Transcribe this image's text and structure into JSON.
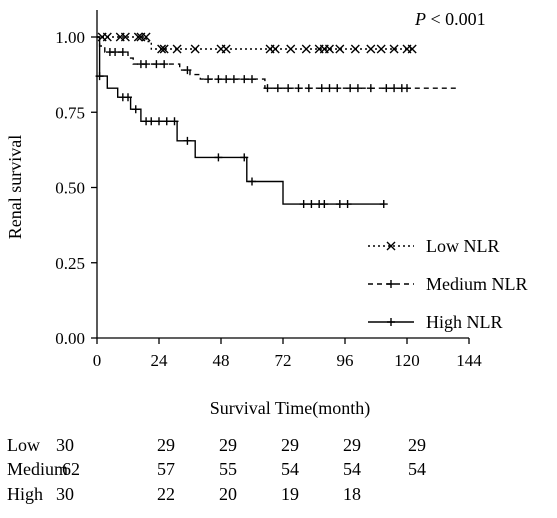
{
  "chart_data": {
    "type": "line",
    "subtype": "kaplan-meier",
    "title": "",
    "annotation": {
      "p_label": "P",
      "p_rest": " < 0.001"
    },
    "xlabel": "Survival Time(month)",
    "ylabel": "Renal survival",
    "xlim": [
      0,
      144
    ],
    "ylim": [
      0,
      1
    ],
    "xticks": [
      0,
      24,
      48,
      72,
      96,
      120,
      144
    ],
    "xtick_labels": [
      "0",
      "24",
      "48",
      "72",
      "96",
      "120",
      "144"
    ],
    "yticks": [
      0,
      0.25,
      0.5,
      0.75,
      1.0
    ],
    "ytick_labels": [
      "0.00",
      "0.25",
      "0.50",
      "0.75",
      "1.00"
    ],
    "legend_position": "right-middle",
    "series": [
      {
        "name": "Low NLR",
        "line_style": "dotted",
        "marker": "x",
        "steps": [
          [
            0,
            1.0
          ],
          [
            19,
            1.0
          ],
          [
            19,
            0.985
          ],
          [
            21,
            0.985
          ],
          [
            21,
            0.96
          ],
          [
            123,
            0.96
          ]
        ],
        "censored": [
          [
            2,
            1.0
          ],
          [
            4,
            1.0
          ],
          [
            9,
            1.0
          ],
          [
            11,
            1.0
          ],
          [
            16,
            1.0
          ],
          [
            17,
            1.0
          ],
          [
            19,
            1.0
          ],
          [
            25,
            0.96
          ],
          [
            26,
            0.96
          ],
          [
            31,
            0.96
          ],
          [
            38,
            0.96
          ],
          [
            48,
            0.96
          ],
          [
            50,
            0.96
          ],
          [
            67,
            0.96
          ],
          [
            69,
            0.96
          ],
          [
            75,
            0.96
          ],
          [
            81,
            0.96
          ],
          [
            86,
            0.96
          ],
          [
            88,
            0.96
          ],
          [
            90,
            0.96
          ],
          [
            94,
            0.96
          ],
          [
            100,
            0.96
          ],
          [
            106,
            0.96
          ],
          [
            110,
            0.96
          ],
          [
            115,
            0.96
          ],
          [
            120,
            0.96
          ],
          [
            122,
            0.96
          ]
        ]
      },
      {
        "name": "Medium NLR",
        "line_style": "dashed",
        "marker": "+",
        "steps": [
          [
            0,
            1.0
          ],
          [
            1,
            1.0
          ],
          [
            1,
            0.97
          ],
          [
            3,
            0.97
          ],
          [
            3,
            0.95
          ],
          [
            12,
            0.95
          ],
          [
            12,
            0.93
          ],
          [
            14,
            0.93
          ],
          [
            14,
            0.91
          ],
          [
            32,
            0.91
          ],
          [
            32,
            0.89
          ],
          [
            36,
            0.89
          ],
          [
            36,
            0.875
          ],
          [
            40,
            0.875
          ],
          [
            40,
            0.86
          ],
          [
            65,
            0.86
          ],
          [
            65,
            0.83
          ],
          [
            140,
            0.83
          ]
        ],
        "censored": [
          [
            5,
            0.95
          ],
          [
            7,
            0.95
          ],
          [
            10,
            0.95
          ],
          [
            17,
            0.91
          ],
          [
            19,
            0.91
          ],
          [
            23,
            0.91
          ],
          [
            26,
            0.91
          ],
          [
            35,
            0.89
          ],
          [
            43,
            0.86
          ],
          [
            47,
            0.86
          ],
          [
            50,
            0.86
          ],
          [
            53,
            0.86
          ],
          [
            57,
            0.86
          ],
          [
            60,
            0.86
          ],
          [
            66,
            0.83
          ],
          [
            70,
            0.83
          ],
          [
            74,
            0.83
          ],
          [
            78,
            0.83
          ],
          [
            82,
            0.83
          ],
          [
            87,
            0.83
          ],
          [
            90,
            0.83
          ],
          [
            93,
            0.83
          ],
          [
            98,
            0.83
          ],
          [
            101,
            0.83
          ],
          [
            106,
            0.83
          ],
          [
            112,
            0.83
          ],
          [
            115,
            0.83
          ],
          [
            118,
            0.83
          ],
          [
            120,
            0.83
          ]
        ]
      },
      {
        "name": "High NLR",
        "line_style": "solid",
        "marker": "+",
        "steps": [
          [
            0,
            1.0
          ],
          [
            1,
            1.0
          ],
          [
            1,
            0.87
          ],
          [
            4,
            0.87
          ],
          [
            4,
            0.83
          ],
          [
            8,
            0.83
          ],
          [
            8,
            0.8
          ],
          [
            13,
            0.8
          ],
          [
            13,
            0.76
          ],
          [
            17,
            0.76
          ],
          [
            17,
            0.72
          ],
          [
            31,
            0.72
          ],
          [
            31,
            0.655
          ],
          [
            38,
            0.655
          ],
          [
            38,
            0.6
          ],
          [
            58,
            0.6
          ],
          [
            58,
            0.52
          ],
          [
            72,
            0.52
          ],
          [
            72,
            0.445
          ],
          [
            111,
            0.445
          ]
        ],
        "censored": [
          [
            1,
            0.87
          ],
          [
            10,
            0.8
          ],
          [
            12,
            0.8
          ],
          [
            15,
            0.76
          ],
          [
            19,
            0.72
          ],
          [
            21,
            0.72
          ],
          [
            24,
            0.72
          ],
          [
            27,
            0.72
          ],
          [
            30,
            0.72
          ],
          [
            35,
            0.655
          ],
          [
            47,
            0.6
          ],
          [
            57,
            0.6
          ],
          [
            60,
            0.52
          ],
          [
            80,
            0.445
          ],
          [
            83,
            0.445
          ],
          [
            86,
            0.445
          ],
          [
            88,
            0.445
          ],
          [
            94,
            0.445
          ],
          [
            97,
            0.445
          ],
          [
            111,
            0.445
          ]
        ]
      }
    ],
    "risk_table": {
      "rows": [
        {
          "label": "Low",
          "values": [
            "30",
            "29",
            "29",
            "29",
            "29",
            "29"
          ]
        },
        {
          "label": "Medium",
          "values": [
            "62",
            "57",
            "55",
            "54",
            "54",
            "54"
          ]
        },
        {
          "label": "High",
          "values": [
            "30",
            "22",
            "20",
            "19",
            "18"
          ]
        }
      ]
    }
  }
}
